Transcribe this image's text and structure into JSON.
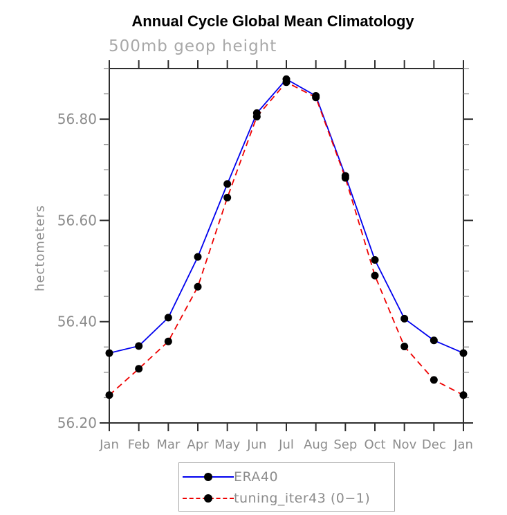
{
  "chart_data": {
    "type": "line",
    "title": "Annual Cycle Global Mean Climatology",
    "subtitle": "500mb geop height",
    "ylabel": "hectometers",
    "categories": [
      "Jan",
      "Feb",
      "Mar",
      "Apr",
      "May",
      "Jun",
      "Jul",
      "Aug",
      "Sep",
      "Oct",
      "Nov",
      "Dec",
      "Jan"
    ],
    "ylim": [
      56.2,
      56.9
    ],
    "ytick_major": [
      56.2,
      56.4,
      56.6,
      56.8
    ],
    "ytick_labels": [
      "56.20",
      "56.40",
      "56.60",
      "56.80"
    ],
    "ytick_minor_step": 0.05,
    "grid": false,
    "legend_position": "bottom-center",
    "series": [
      {
        "name": "ERA40",
        "color": "#0000ee",
        "style": "solid",
        "marker": "black-dot",
        "values": [
          56.338,
          56.352,
          56.408,
          56.528,
          56.672,
          56.812,
          56.879,
          56.846,
          56.688,
          56.522,
          56.406,
          56.363,
          56.338
        ]
      },
      {
        "name": "tuning_iter43 (0−1)",
        "color": "#ee0000",
        "style": "dashed",
        "marker": "black-dot",
        "values": [
          56.255,
          56.307,
          56.361,
          56.469,
          56.645,
          56.805,
          56.873,
          56.843,
          56.684,
          56.491,
          56.351,
          56.285,
          56.255
        ]
      }
    ]
  },
  "colors": {
    "background": "#ffffff",
    "frame": "#2e2e2e",
    "tick_minor": "#8a8a8a",
    "axis_label": "#8c8c8c",
    "subtitle": "#a8a8a8",
    "title": "#000000",
    "legend_border": "#a6a6a6",
    "marker": "#000000"
  }
}
